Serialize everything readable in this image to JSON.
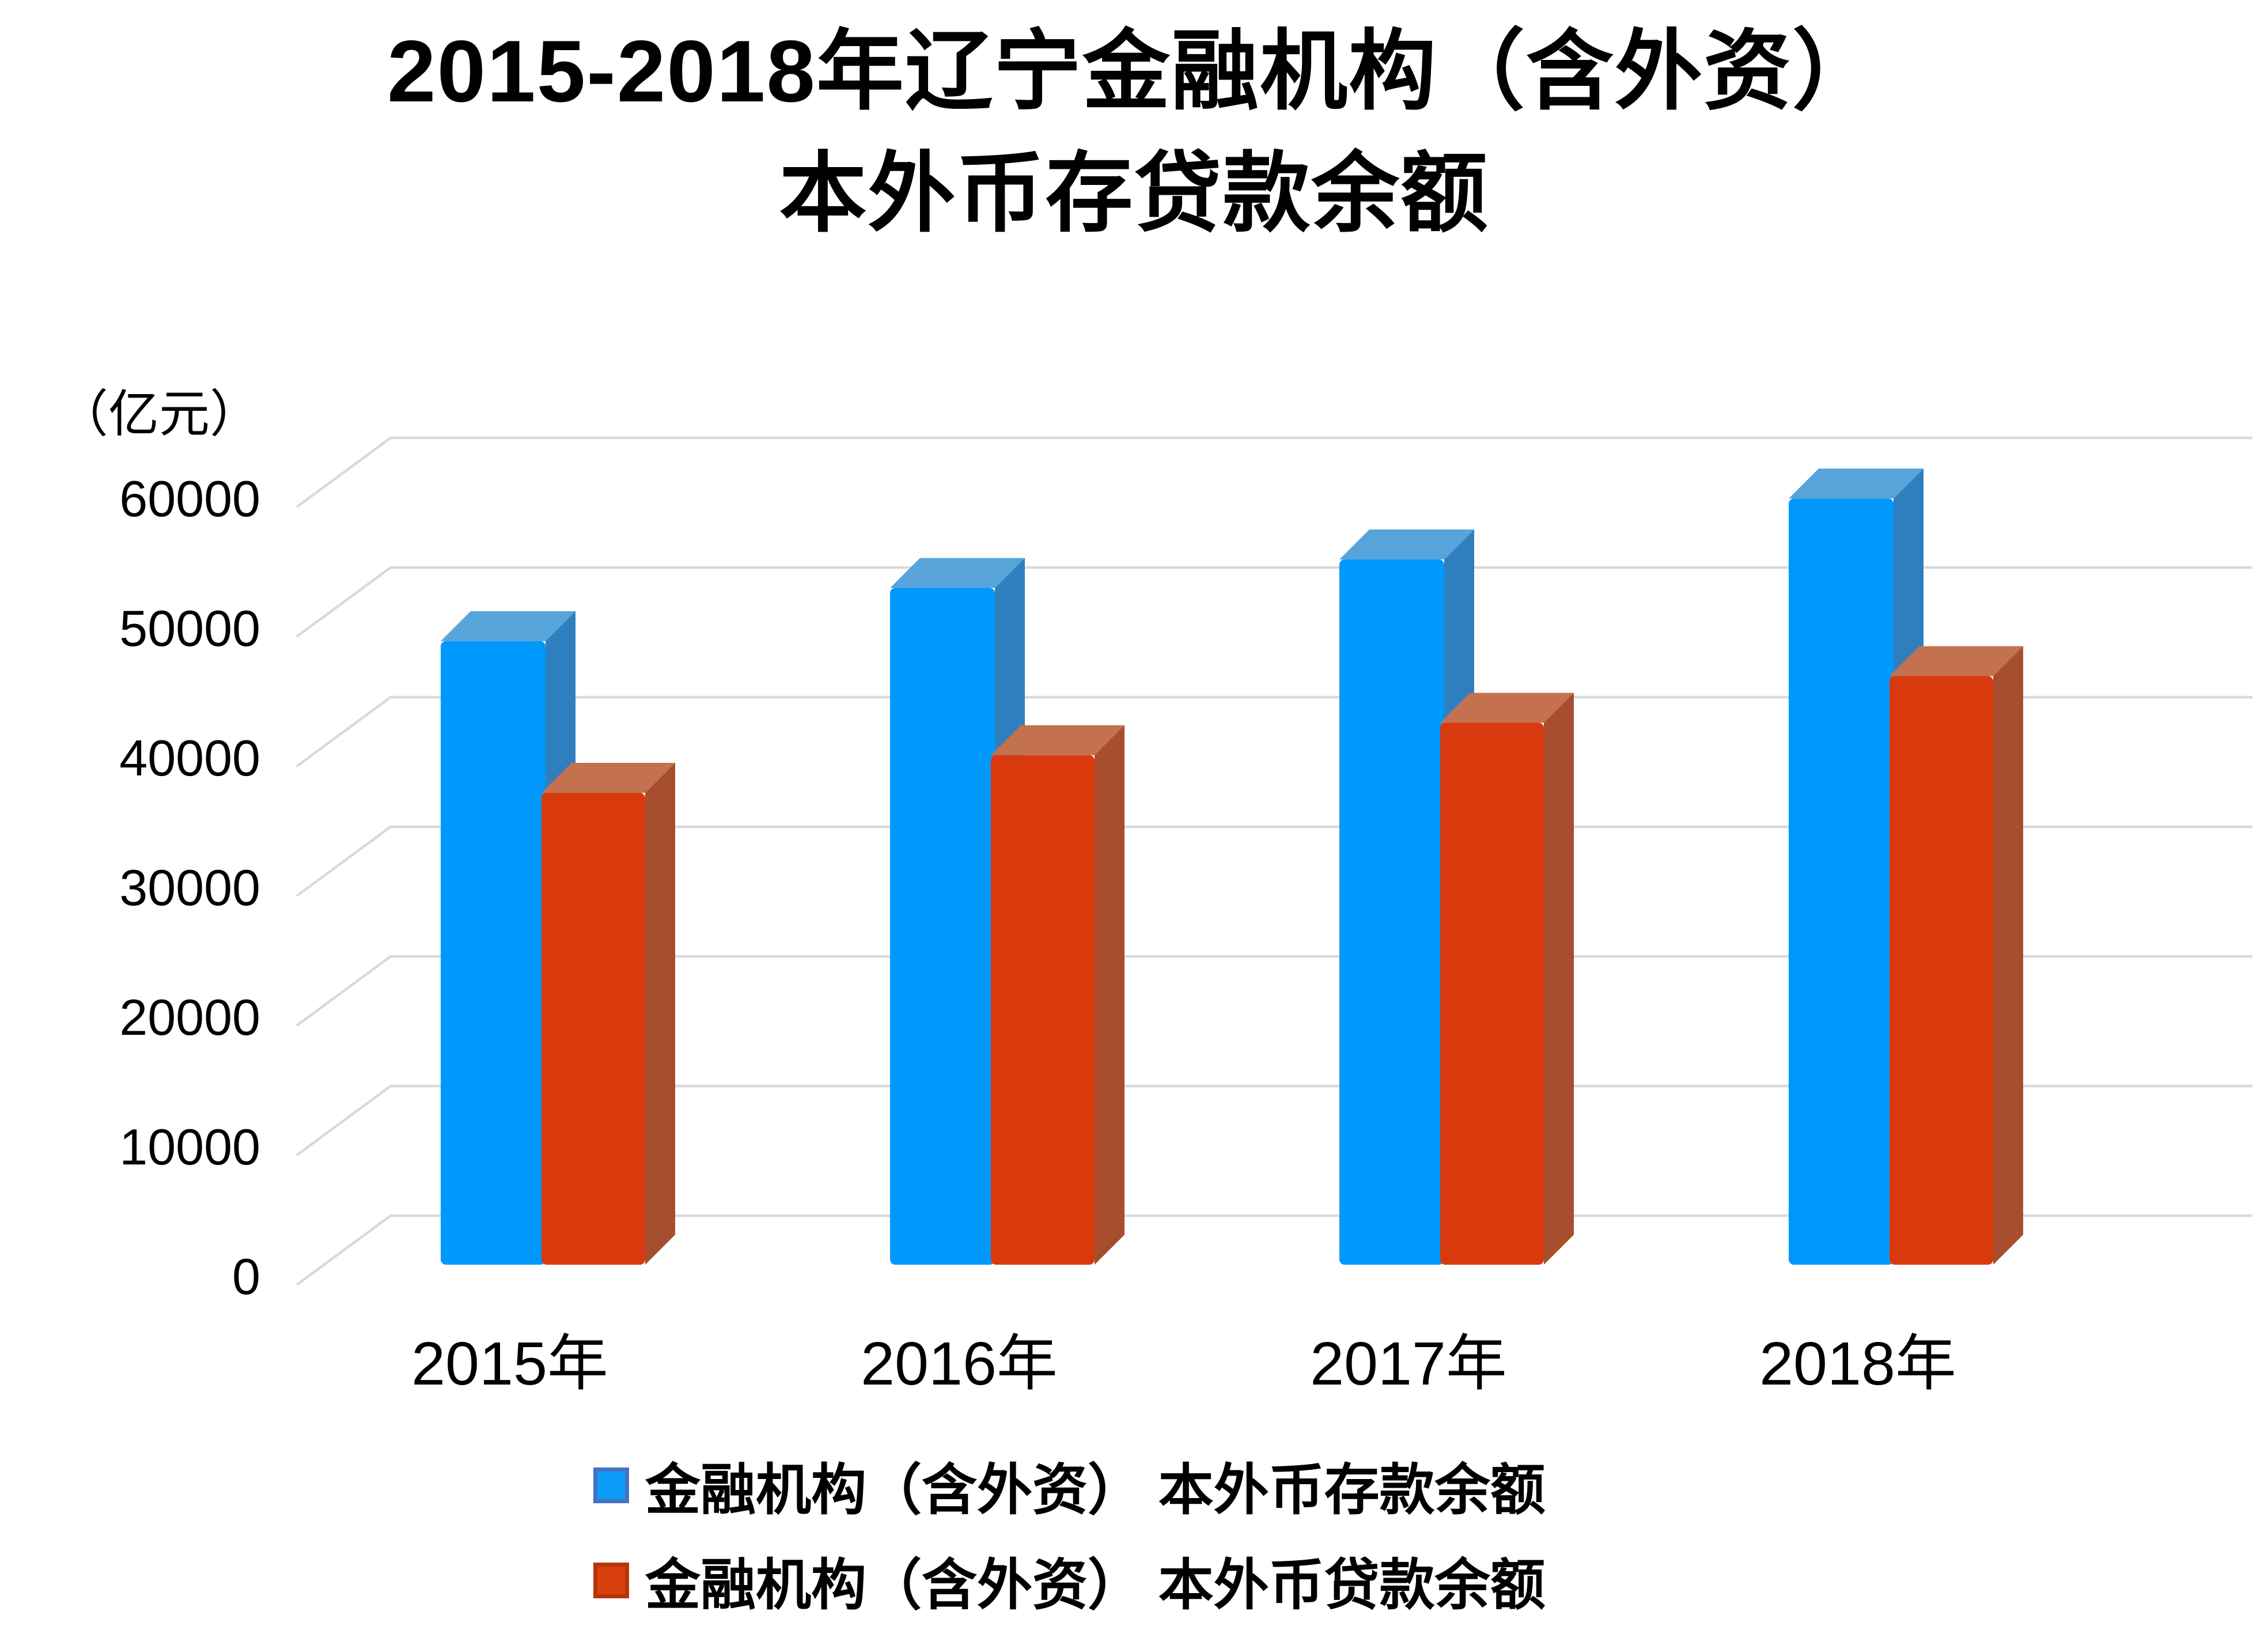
{
  "title": {
    "line1": "2015-2018年辽宁金融机构（含外资）",
    "line2": "本外币存贷款余额"
  },
  "axis": {
    "unit_label": "（亿元）"
  },
  "chart_data": {
    "type": "bar",
    "projection": "3d",
    "title": "2015-2018年辽宁金融机构（含外资）本外币存贷款余额",
    "ylabel": "（亿元）",
    "categories": [
      "2015年",
      "2016年",
      "2017年",
      "2018年"
    ],
    "series": [
      {
        "id": "deposits",
        "name": "金融机构（含外资） 本外币存款余额",
        "values": [
          48100,
          52200,
          54400,
          59100
        ],
        "colors": {
          "front": "#0099FB",
          "top": "#57A4DB",
          "side": "#2F7FBE",
          "swatch": "#0D9DF8",
          "swatch_border": "#4472C4"
        }
      },
      {
        "id": "loans",
        "name": "金融机构（含外资） 本外币贷款余额",
        "values": [
          36400,
          39300,
          41800,
          45400
        ],
        "colors": {
          "front": "#D93A0D",
          "top": "#C4714F",
          "side": "#A64E2E",
          "swatch": "#D9400E",
          "swatch_border": "#B63509"
        }
      }
    ],
    "ylim": [
      0,
      60000
    ],
    "ytick_step": 10000,
    "y_tick_labels": [
      "0",
      "10000",
      "20000",
      "30000",
      "40000",
      "50000",
      "60000"
    ],
    "grid": true,
    "grid_color": "#D9D9D9",
    "legend_position": "bottom"
  }
}
